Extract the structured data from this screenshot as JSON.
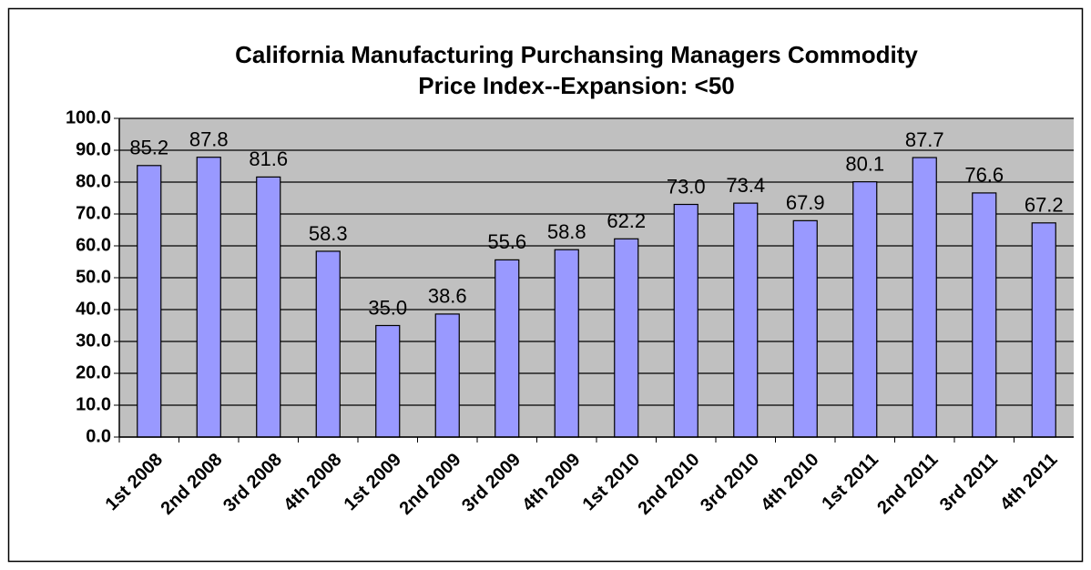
{
  "chart_data": {
    "type": "bar",
    "title": [
      "California Manufacturing Purchansing Managers Commodity",
      "Price Index--Expansion: <50"
    ],
    "categories": [
      "1st 2008",
      "2nd 2008",
      "3rd 2008",
      "4th 2008",
      "1st 2009",
      "2nd 2009",
      "3rd 2009",
      "4th 2009",
      "1st 2010",
      "2nd 2010",
      "3rd 2010",
      "4th 2010",
      "1st 2011",
      "2nd 2011",
      "3rd 2011",
      "4th 2011"
    ],
    "values": [
      85.2,
      87.8,
      81.6,
      58.3,
      35.0,
      38.6,
      55.6,
      58.8,
      62.2,
      73.0,
      73.4,
      67.9,
      80.1,
      87.7,
      76.6,
      67.2
    ],
    "value_labels": [
      "85.2",
      "87.8",
      "81.6",
      "58.3",
      "35.0",
      "38.6",
      "55.6",
      "58.8",
      "62.2",
      "73.0",
      "73.4",
      "67.9",
      "80.1",
      "87.7",
      "76.6",
      "67.2"
    ],
    "color": "#9999ff",
    "ylim": [
      0,
      100
    ],
    "yticks": [
      {
        "value": 0,
        "label": "0.0"
      },
      {
        "value": 10,
        "label": "10.0"
      },
      {
        "value": 20,
        "label": "20.0"
      },
      {
        "value": 30,
        "label": "30.0"
      },
      {
        "value": 40,
        "label": "40.0"
      },
      {
        "value": 50,
        "label": "50.0"
      },
      {
        "value": 60,
        "label": "60.0"
      },
      {
        "value": 70,
        "label": "70.0"
      },
      {
        "value": 80,
        "label": "80.0"
      },
      {
        "value": 90,
        "label": "90.0"
      },
      {
        "value": 100,
        "label": "100.0"
      }
    ],
    "grid": true
  }
}
